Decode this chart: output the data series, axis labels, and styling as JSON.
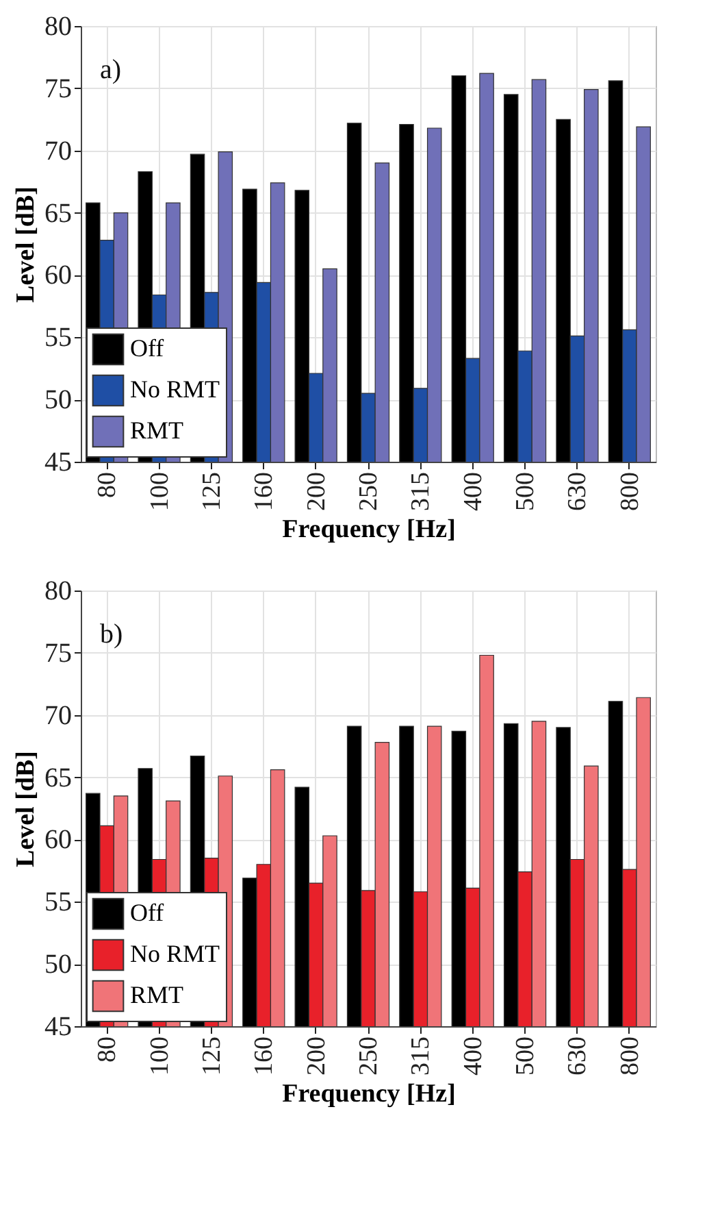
{
  "chart_data": [
    {
      "type": "bar",
      "annotations": [
        "a)"
      ],
      "xlabel": "Frequency [Hz]",
      "ylabel": "Level [dB]",
      "categories": [
        "80",
        "100",
        "125",
        "160",
        "200",
        "250",
        "315",
        "400",
        "500",
        "630",
        "800"
      ],
      "series": [
        {
          "name": "Off",
          "color": "#000000",
          "values": [
            65.8,
            68.3,
            69.7,
            66.9,
            66.8,
            72.2,
            72.1,
            76.0,
            74.5,
            72.5,
            75.6
          ]
        },
        {
          "name": "No RMT",
          "color": "#1f4fa5",
          "values": [
            62.8,
            58.4,
            58.6,
            59.4,
            52.1,
            50.5,
            50.9,
            53.3,
            53.9,
            55.1,
            55.6
          ]
        },
        {
          "name": "RMT",
          "color": "#7070b8",
          "values": [
            65.0,
            65.8,
            69.9,
            67.4,
            60.5,
            69.0,
            71.8,
            76.2,
            75.7,
            74.9,
            71.9
          ]
        }
      ],
      "ylim": [
        45,
        80
      ],
      "yticks": [
        45,
        50,
        55,
        60,
        65,
        70,
        75,
        80
      ],
      "grid": true,
      "legend": "bottom left"
    },
    {
      "type": "bar",
      "annotations": [
        "b)"
      ],
      "xlabel": "Frequency [Hz]",
      "ylabel": "Level [dB]",
      "categories": [
        "80",
        "100",
        "125",
        "160",
        "200",
        "250",
        "315",
        "400",
        "500",
        "630",
        "800"
      ],
      "series": [
        {
          "name": "Off",
          "color": "#000000",
          "values": [
            63.7,
            65.7,
            66.7,
            56.9,
            64.2,
            69.1,
            69.1,
            68.7,
            69.3,
            69.0,
            71.1
          ]
        },
        {
          "name": "No RMT",
          "color": "#e8212a",
          "values": [
            61.1,
            58.4,
            58.5,
            58.0,
            56.5,
            55.9,
            55.8,
            56.1,
            57.4,
            58.4,
            57.6
          ]
        },
        {
          "name": "RMT",
          "color": "#f07478",
          "values": [
            63.5,
            63.1,
            65.1,
            65.6,
            60.3,
            67.8,
            69.1,
            74.8,
            69.5,
            65.9,
            71.4
          ]
        }
      ],
      "ylim": [
        45,
        80
      ],
      "yticks": [
        45,
        50,
        55,
        60,
        65,
        70,
        75,
        80
      ],
      "grid": true,
      "legend": "bottom left"
    }
  ]
}
